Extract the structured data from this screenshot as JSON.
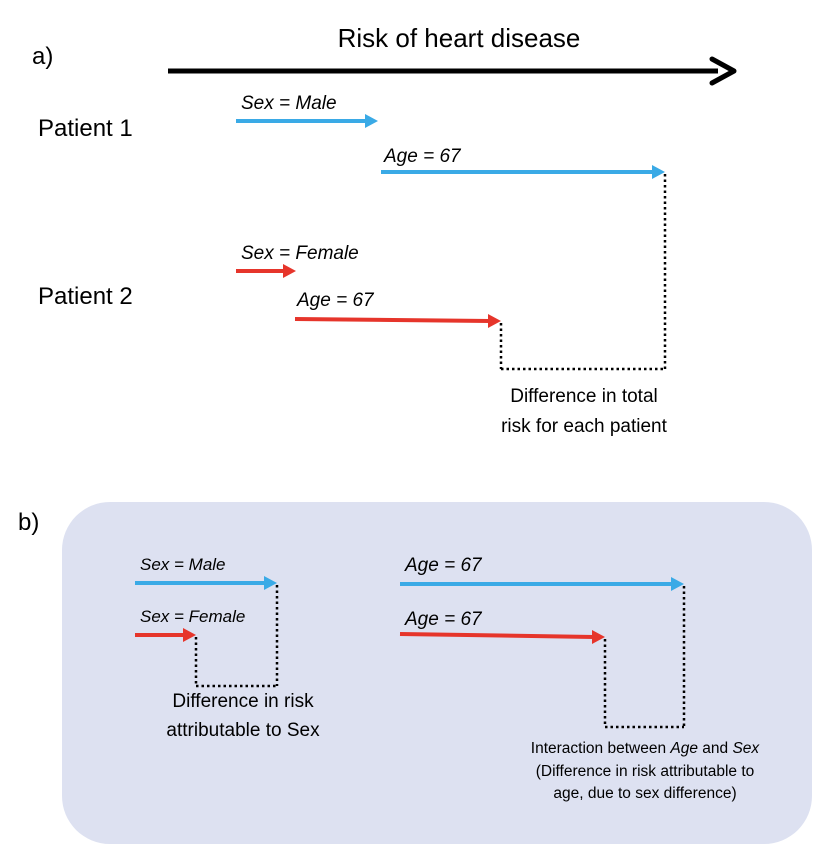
{
  "colors": {
    "male": "#3aaae6",
    "female": "#e6352b",
    "panel_bg": "#dde1f1",
    "text": "#000000"
  },
  "panel_a": {
    "label": "a)",
    "title": "Risk of heart disease",
    "patient1": {
      "name": "Patient 1",
      "sex_label": "Sex = Male",
      "age_label": "Age = 67"
    },
    "patient2": {
      "name": "Patient 2",
      "sex_label": "Sex = Female",
      "age_label": "Age = 67"
    },
    "difference_line1": "Difference in total",
    "difference_line2": "risk for each patient"
  },
  "panel_b": {
    "label": "b)",
    "sex_male_label": "Sex = Male",
    "sex_female_label": "Sex = Female",
    "sex_diff_line1": "Difference in risk",
    "sex_diff_line2": "attributable to Sex",
    "age_male_label": "Age = 67",
    "age_female_label": "Age = 67",
    "interaction": {
      "prefix": "Interaction between ",
      "term1": "Age",
      "middle": " and ",
      "term2": "Sex",
      "line2": "(Difference in risk attributable to",
      "line3": "age, due to sex difference)"
    }
  }
}
